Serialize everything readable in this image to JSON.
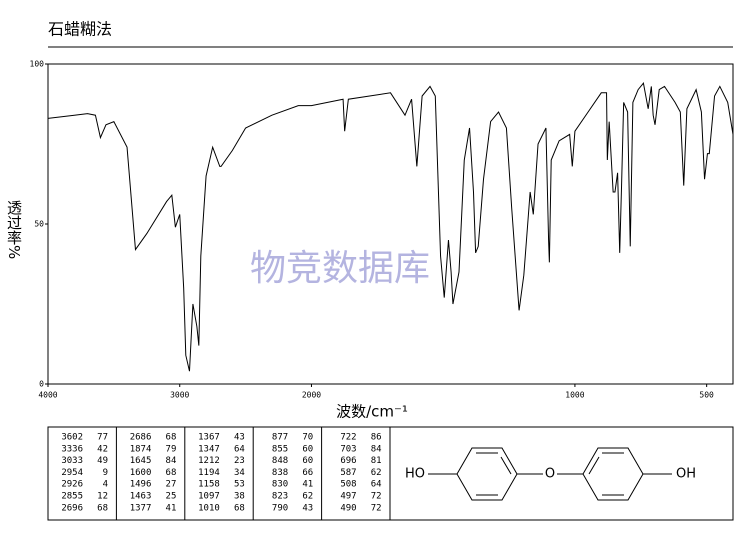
{
  "chart_data": {
    "type": "line",
    "title": "石蜡糊法",
    "y_label": "透过率%",
    "x_label": "波数/cm⁻¹",
    "watermark": "物竞数据库",
    "xlim": [
      4000,
      400
    ],
    "x_break": 2000,
    "xticks": [
      4000,
      3000,
      2000,
      1000,
      500
    ],
    "ylim": [
      0,
      100
    ],
    "yticks": [
      0,
      50,
      100
    ],
    "color": "#000000",
    "x": [
      4000,
      3800,
      3700,
      3640,
      3602,
      3560,
      3500,
      3400,
      3336,
      3250,
      3100,
      3060,
      3033,
      3000,
      2970,
      2954,
      2926,
      2900,
      2870,
      2855,
      2840,
      2800,
      2750,
      2696,
      2686,
      2600,
      2500,
      2300,
      2100,
      2000,
      1880,
      1874,
      1860,
      1700,
      1645,
      1620,
      1600,
      1580,
      1550,
      1530,
      1510,
      1496,
      1480,
      1470,
      1463,
      1440,
      1420,
      1400,
      1385,
      1377,
      1367,
      1347,
      1320,
      1290,
      1260,
      1240,
      1212,
      1194,
      1170,
      1158,
      1140,
      1110,
      1100,
      1097,
      1090,
      1060,
      1020,
      1010,
      1000,
      950,
      900,
      880,
      877,
      870,
      855,
      848,
      838,
      830,
      823,
      815,
      800,
      790,
      780,
      760,
      740,
      722,
      710,
      703,
      696,
      680,
      660,
      620,
      600,
      587,
      575,
      540,
      520,
      508,
      497,
      490,
      470,
      450,
      420,
      400
    ],
    "values": [
      83,
      84,
      84.5,
      84,
      77,
      81,
      82,
      74,
      42,
      47,
      57,
      59,
      49,
      53,
      30,
      9,
      4,
      25,
      18,
      12,
      40,
      65,
      74,
      68,
      68,
      73,
      80,
      84,
      87,
      87,
      89,
      79,
      89,
      91,
      84,
      89,
      68,
      90,
      93,
      90,
      40,
      27,
      45,
      35,
      25,
      35,
      70,
      80,
      60,
      41,
      43,
      64,
      82,
      85,
      80,
      55,
      23,
      34,
      60,
      53,
      75,
      80,
      45,
      38,
      70,
      76,
      78,
      68,
      79,
      85,
      91,
      91,
      70,
      82,
      60,
      60,
      66,
      41,
      62,
      88,
      85,
      43,
      88,
      92,
      94,
      86,
      93,
      84,
      81,
      92,
      93,
      88,
      85,
      62,
      86,
      92,
      85,
      64,
      72,
      72,
      90,
      93,
      88,
      78
    ]
  },
  "peak_table": [
    [
      [
        3602,
        77
      ],
      [
        3336,
        42
      ],
      [
        3033,
        49
      ],
      [
        2954,
        9
      ],
      [
        2926,
        4
      ],
      [
        2855,
        12
      ],
      [
        2696,
        68
      ]
    ],
    [
      [
        2686,
        68
      ],
      [
        1874,
        79
      ],
      [
        1645,
        84
      ],
      [
        1600,
        68
      ],
      [
        1496,
        27
      ],
      [
        1463,
        25
      ],
      [
        1377,
        41
      ]
    ],
    [
      [
        1367,
        43
      ],
      [
        1347,
        64
      ],
      [
        1212,
        23
      ],
      [
        1194,
        34
      ],
      [
        1158,
        53
      ],
      [
        1097,
        38
      ],
      [
        1010,
        68
      ]
    ],
    [
      [
        877,
        70
      ],
      [
        855,
        60
      ],
      [
        848,
        60
      ],
      [
        838,
        66
      ],
      [
        830,
        41
      ],
      [
        823,
        62
      ],
      [
        790,
        43
      ]
    ],
    [
      [
        722,
        86
      ],
      [
        703,
        84
      ],
      [
        696,
        81
      ],
      [
        587,
        62
      ],
      [
        508,
        64
      ],
      [
        497,
        72
      ],
      [
        490,
        72
      ]
    ]
  ],
  "structure": {
    "labels": [
      "HO",
      "O",
      "OH"
    ]
  }
}
